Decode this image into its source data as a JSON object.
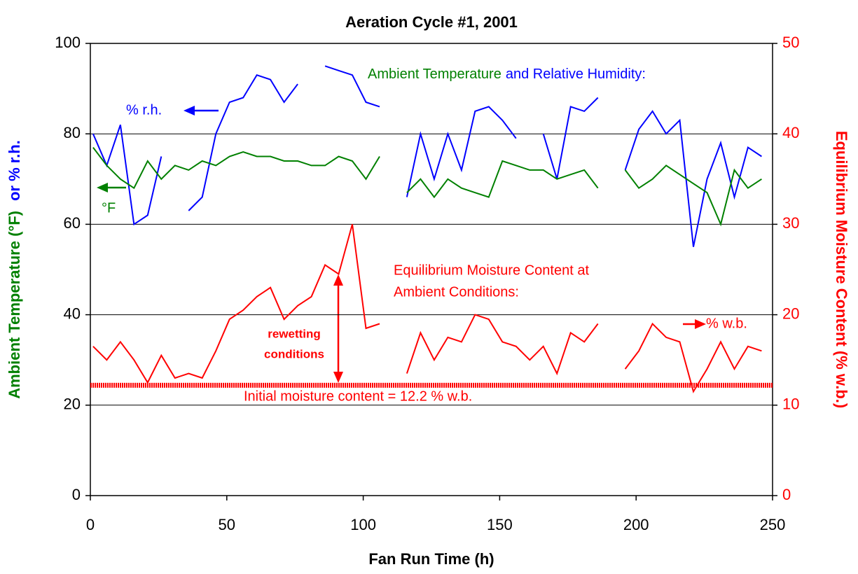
{
  "chart_data": {
    "type": "line",
    "title": "Aeration Cycle #1, 2001",
    "x_label": "Fan Run Time (h)",
    "y_label_parts": [
      "Ambient Temperature (°F)",
      "or % r.h."
    ],
    "y2_label": "Equilibrium Moisture Content (% w.b.)",
    "annotations": {
      "ambient_parts": [
        "Ambient Temperature",
        "and Relative Humidity:"
      ],
      "emc_lines": [
        "Equilibrium Moisture Content at",
        "Ambient Conditions:"
      ],
      "rewetting_lines": [
        "rewetting",
        "conditions"
      ]
    },
    "reference_line": {
      "value": 12.2,
      "label": "Initial moisture content = 12.2 % w.b.",
      "axis": "y2",
      "color": "#ff0000"
    },
    "xlim": [
      0,
      250
    ],
    "xticks": [
      0,
      50,
      100,
      150,
      200,
      250
    ],
    "ylim": [
      0,
      100
    ],
    "yticks": [
      0,
      20,
      40,
      60,
      80,
      100
    ],
    "y2lim": [
      0,
      50
    ],
    "y2ticks": [
      0,
      10,
      20,
      30,
      40,
      50
    ],
    "grid": true,
    "x": [
      1,
      6,
      11,
      16,
      21,
      26,
      31,
      36,
      41,
      46,
      51,
      56,
      61,
      66,
      71,
      76,
      81,
      86,
      91,
      96,
      101,
      106,
      111,
      116,
      121,
      126,
      131,
      136,
      141,
      146,
      151,
      156,
      161,
      166,
      171,
      176,
      181,
      186,
      191,
      196,
      201,
      206,
      211,
      216,
      221,
      226,
      231,
      236,
      241,
      246
    ],
    "series": [
      {
        "name": "% r.h.",
        "color": "#0000ff",
        "axis": "y",
        "values": [
          80,
          73,
          82,
          60,
          62,
          75,
          null,
          63,
          66,
          80,
          87,
          88,
          93,
          92,
          87,
          91,
          null,
          95,
          94,
          93,
          87,
          86,
          null,
          66,
          80,
          70,
          80,
          72,
          85,
          86,
          83,
          79,
          null,
          80,
          70,
          86,
          85,
          88,
          null,
          72,
          81,
          85,
          80,
          83,
          55,
          70,
          78,
          66,
          77,
          75
        ]
      },
      {
        "name": "°F",
        "color": "#008000",
        "axis": "y",
        "values": [
          77,
          73,
          70,
          68,
          74,
          70,
          73,
          72,
          74,
          73,
          75,
          76,
          75,
          75,
          74,
          74,
          73,
          73,
          75,
          74,
          70,
          75,
          null,
          67,
          70,
          66,
          70,
          68,
          67,
          66,
          74,
          73,
          72,
          72,
          70,
          71,
          72,
          68,
          null,
          72,
          68,
          70,
          73,
          71,
          69,
          67,
          60,
          72,
          68,
          70
        ]
      },
      {
        "name": "% w.b.",
        "color": "#ff0000",
        "axis": "y2",
        "values": [
          16.5,
          15,
          17,
          15,
          12.5,
          15.5,
          13,
          13.5,
          13,
          16,
          19.5,
          20.5,
          22,
          23,
          19.5,
          21,
          22,
          25.5,
          24.5,
          30,
          18.5,
          19,
          null,
          13.5,
          18,
          15,
          17.5,
          17,
          20,
          19.5,
          17,
          16.5,
          15,
          16.5,
          13.5,
          18,
          17,
          19,
          null,
          14,
          16,
          19,
          17.5,
          17,
          11.5,
          14,
          17,
          14,
          16.5,
          16
        ]
      }
    ]
  }
}
